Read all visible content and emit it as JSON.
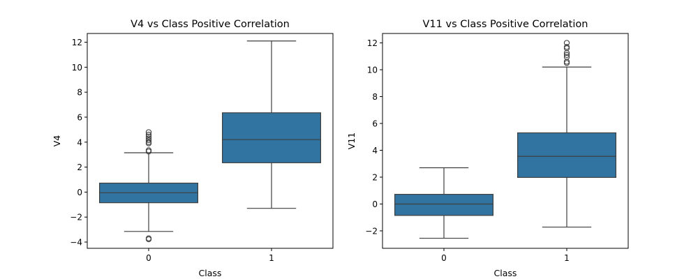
{
  "chart_data": [
    {
      "type": "box",
      "title": "V4 vs Class Positive Correlation",
      "xlabel": "Class",
      "ylabel": "V4",
      "categories": [
        "0",
        "1"
      ],
      "ylim": [
        -4.5,
        12.7
      ],
      "yticks": [
        -4,
        -2,
        0,
        2,
        4,
        6,
        8,
        10,
        12
      ],
      "grid": false,
      "color": "#3274a1",
      "edge_color": "#3f3f3f",
      "boxes": [
        {
          "category": "0",
          "whisker_low": -3.15,
          "q1": -0.85,
          "median": -0.05,
          "q3": 0.72,
          "whisker_high": 3.15,
          "outliers": [
            -3.7,
            -3.78,
            3.25,
            3.35,
            3.9,
            4.0,
            4.15,
            4.3,
            4.45,
            4.6,
            4.8
          ]
        },
        {
          "category": "1",
          "whisker_low": -1.3,
          "q1": 2.35,
          "median": 4.2,
          "q3": 6.35,
          "whisker_high": 12.1,
          "outliers": []
        }
      ]
    },
    {
      "type": "box",
      "title": "V11 vs Class Positive Correlation",
      "xlabel": "Class",
      "ylabel": "V11",
      "categories": [
        "0",
        "1"
      ],
      "ylim": [
        -3.3,
        12.7
      ],
      "yticks": [
        -2,
        0,
        2,
        4,
        6,
        8,
        10,
        12
      ],
      "grid": false,
      "color": "#3274a1",
      "edge_color": "#3f3f3f",
      "boxes": [
        {
          "category": "0",
          "whisker_low": -2.55,
          "q1": -0.85,
          "median": 0.0,
          "q3": 0.72,
          "whisker_high": 2.7,
          "outliers": []
        },
        {
          "category": "1",
          "whisker_low": -1.72,
          "q1": 1.98,
          "median": 3.55,
          "q3": 5.3,
          "whisker_high": 10.2,
          "outliers": [
            10.5,
            10.6,
            10.95,
            11.1,
            11.25,
            11.6,
            11.7,
            12.0
          ]
        }
      ]
    }
  ]
}
